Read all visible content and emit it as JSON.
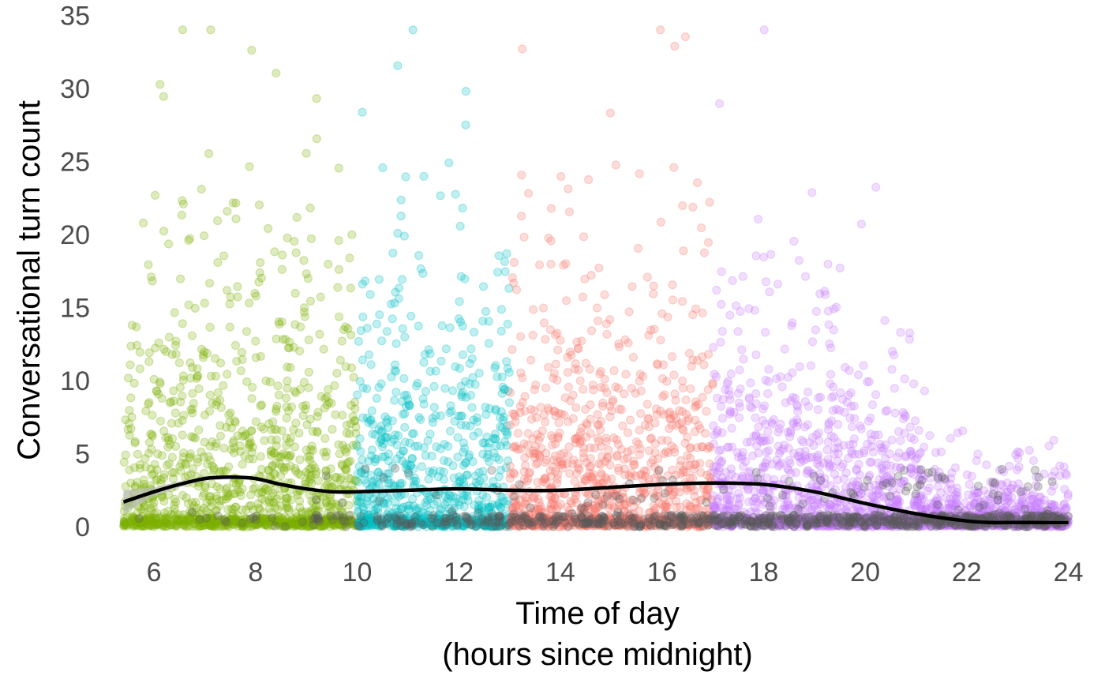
{
  "chart_data": {
    "type": "scatter",
    "title": "",
    "xlabel_lines": [
      "Time of day",
      "(hours since midnight)"
    ],
    "ylabel": "Conversational turn count",
    "xlim": [
      5.3,
      24.1
    ],
    "ylim": [
      -1.5,
      35.5
    ],
    "x_ticks": [
      6,
      8,
      10,
      12,
      14,
      16,
      18,
      20,
      22,
      24
    ],
    "y_ticks": [
      0,
      5,
      10,
      15,
      20,
      25,
      30,
      35
    ],
    "grid": false,
    "legend": "none",
    "point_alpha": 0.25,
    "segments": [
      {
        "x_range": [
          5.4,
          10.0
        ],
        "color": "#7CAE00"
      },
      {
        "x_range": [
          10.0,
          13.0
        ],
        "color": "#00BFC4"
      },
      {
        "x_range": [
          13.0,
          17.0
        ],
        "color": "#F8766D"
      },
      {
        "x_range": [
          17.0,
          24.0
        ],
        "color": "#C77CFF"
      },
      {
        "x_range": [
          5.4,
          24.0
        ],
        "color": "#595959"
      }
    ],
    "smooth_line": {
      "color": "#000000",
      "band_color": "#bdbdbd",
      "x": [
        5.4,
        6.0,
        6.5,
        7.0,
        7.5,
        8.0,
        8.5,
        9.0,
        9.5,
        10.0,
        11.0,
        12.0,
        13.0,
        14.0,
        15.0,
        16.0,
        17.0,
        18.0,
        19.0,
        20.0,
        21.0,
        22.0,
        22.5,
        23.0,
        24.0
      ],
      "y": [
        1.7,
        2.4,
        2.9,
        3.3,
        3.4,
        3.3,
        2.9,
        2.6,
        2.4,
        2.4,
        2.5,
        2.6,
        2.5,
        2.5,
        2.7,
        2.9,
        3.0,
        2.9,
        2.4,
        1.6,
        0.9,
        0.4,
        0.3,
        0.3,
        0.3
      ],
      "band_half_width": [
        0.8,
        0.3,
        0.2,
        0.15,
        0.12,
        0.1,
        0.08,
        0.08,
        0.08,
        0.08,
        0.08,
        0.08,
        0.08,
        0.08,
        0.08,
        0.08,
        0.08,
        0.08,
        0.08,
        0.08,
        0.08,
        0.08,
        0.08,
        0.1,
        0.15
      ]
    }
  }
}
